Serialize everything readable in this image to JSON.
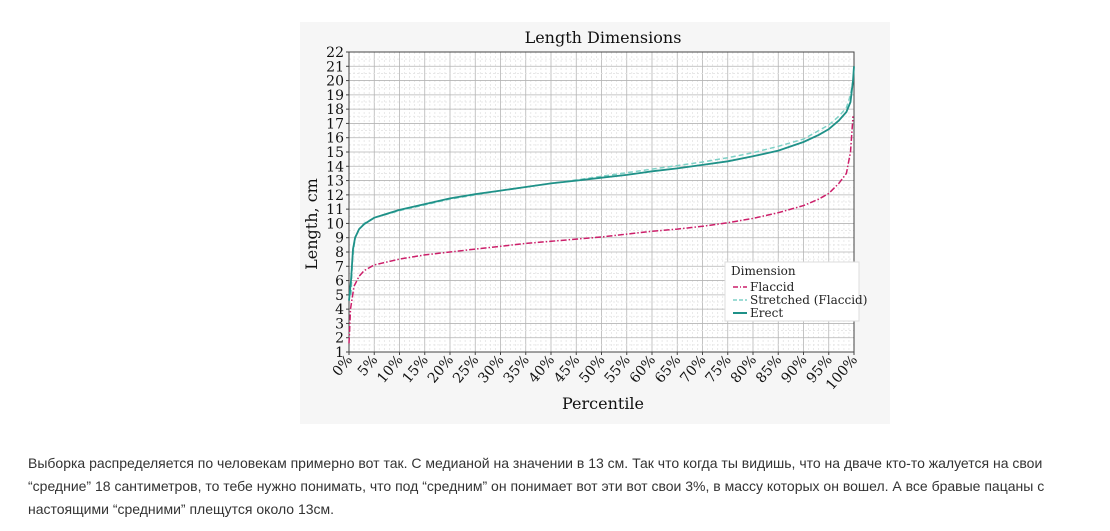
{
  "chart_data": {
    "type": "line",
    "title": "Length Dimensions",
    "xlabel": "Percentile",
    "ylabel": "Length, cm",
    "xlim": [
      0,
      100
    ],
    "ylim": [
      1,
      22
    ],
    "x_ticks": [
      "0%",
      "5%",
      "10%",
      "15%",
      "20%",
      "25%",
      "30%",
      "35%",
      "40%",
      "45%",
      "50%",
      "55%",
      "60%",
      "65%",
      "70%",
      "75%",
      "80%",
      "85%",
      "90%",
      "95%",
      "100%"
    ],
    "y_ticks": [
      "1",
      "2",
      "3",
      "4",
      "5",
      "6",
      "7",
      "8",
      "9",
      "10",
      "11",
      "12",
      "13",
      "14",
      "15",
      "16",
      "17",
      "18",
      "19",
      "20",
      "21",
      "22"
    ],
    "grid": true,
    "legend": {
      "title": "Dimension",
      "placement": "bottom-right"
    },
    "series": [
      {
        "name": "Flaccid",
        "style": "dash-dot",
        "color": "#cc1f6a",
        "points": [
          [
            0,
            1.6
          ],
          [
            0.3,
            4.0
          ],
          [
            1,
            5.6
          ],
          [
            2,
            6.3
          ],
          [
            3,
            6.7
          ],
          [
            5,
            7.1
          ],
          [
            10,
            7.5
          ],
          [
            15,
            7.8
          ],
          [
            20,
            8.0
          ],
          [
            25,
            8.2
          ],
          [
            30,
            8.4
          ],
          [
            35,
            8.6
          ],
          [
            40,
            8.75
          ],
          [
            45,
            8.9
          ],
          [
            50,
            9.05
          ],
          [
            55,
            9.25
          ],
          [
            60,
            9.45
          ],
          [
            65,
            9.6
          ],
          [
            70,
            9.8
          ],
          [
            75,
            10.05
          ],
          [
            80,
            10.35
          ],
          [
            85,
            10.75
          ],
          [
            90,
            11.25
          ],
          [
            93,
            11.7
          ],
          [
            95,
            12.1
          ],
          [
            97,
            12.8
          ],
          [
            98.5,
            13.5
          ],
          [
            99.3,
            15.0
          ],
          [
            99.8,
            17.5
          ]
        ]
      },
      {
        "name": "Stretched (Flaccid)",
        "style": "dashed",
        "color": "#7fd1c7",
        "points": [
          [
            0.4,
            5.0
          ],
          [
            0.7,
            7.5
          ],
          [
            1.2,
            9.0
          ],
          [
            2,
            9.6
          ],
          [
            3,
            10.0
          ],
          [
            5,
            10.4
          ],
          [
            10,
            10.9
          ],
          [
            15,
            11.3
          ],
          [
            20,
            11.7
          ],
          [
            25,
            12.0
          ],
          [
            30,
            12.3
          ],
          [
            35,
            12.55
          ],
          [
            40,
            12.8
          ],
          [
            45,
            13.05
          ],
          [
            50,
            13.3
          ],
          [
            55,
            13.55
          ],
          [
            60,
            13.8
          ],
          [
            65,
            14.05
          ],
          [
            70,
            14.3
          ],
          [
            75,
            14.6
          ],
          [
            80,
            14.95
          ],
          [
            85,
            15.4
          ],
          [
            90,
            15.9
          ],
          [
            93,
            16.5
          ],
          [
            95,
            16.9
          ],
          [
            97,
            17.5
          ],
          [
            98.5,
            18.1
          ],
          [
            99.3,
            19.0
          ],
          [
            99.8,
            20.0
          ]
        ]
      },
      {
        "name": "Erect",
        "style": "solid",
        "color": "#1f9188",
        "points": [
          [
            0,
            4.6
          ],
          [
            0.4,
            6.0
          ],
          [
            0.8,
            8.2
          ],
          [
            1.2,
            9.0
          ],
          [
            2,
            9.6
          ],
          [
            3,
            9.95
          ],
          [
            5,
            10.4
          ],
          [
            10,
            10.95
          ],
          [
            15,
            11.35
          ],
          [
            20,
            11.75
          ],
          [
            25,
            12.05
          ],
          [
            30,
            12.3
          ],
          [
            35,
            12.55
          ],
          [
            40,
            12.8
          ],
          [
            45,
            13.0
          ],
          [
            50,
            13.2
          ],
          [
            55,
            13.4
          ],
          [
            60,
            13.65
          ],
          [
            65,
            13.85
          ],
          [
            70,
            14.1
          ],
          [
            75,
            14.35
          ],
          [
            80,
            14.7
          ],
          [
            85,
            15.1
          ],
          [
            90,
            15.7
          ],
          [
            93,
            16.2
          ],
          [
            95,
            16.6
          ],
          [
            97,
            17.2
          ],
          [
            98.5,
            17.8
          ],
          [
            99.3,
            18.5
          ],
          [
            99.8,
            20.0
          ],
          [
            100,
            21.0
          ]
        ]
      }
    ]
  },
  "caption": "Выборка распределяется по человекам примерно вот так. С медианой на значении в 13 см. Так что когда ты видишь, что на дваче кто-то жалуется на свои “средние” 18 сантиметров, то тебе нужно понимать, что под “средним” он понимает вот эти вот свои 3%, в массу которых он вошел. А все бравые пацаны с настоящими “средними” плещутся около 13см."
}
